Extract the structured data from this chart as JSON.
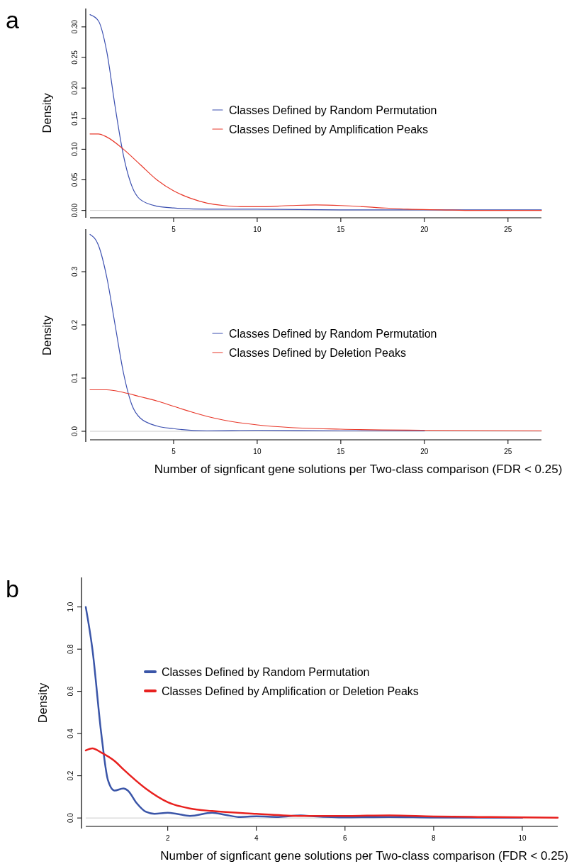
{
  "chart_data": [
    {
      "type": "line",
      "ylabel": "Density",
      "annotations": [
        "a"
      ],
      "xlim": [
        0,
        27
      ],
      "ylim": [
        -0.012,
        0.33
      ],
      "xticks": [
        5,
        10,
        15,
        20,
        25
      ],
      "yticks": [
        {
          "value": 0,
          "label": "0.00"
        },
        {
          "value": 0.05,
          "label": "0.05"
        },
        {
          "value": 0.1,
          "label": "0.10"
        },
        {
          "value": 0.15,
          "label": "0.15"
        },
        {
          "value": 0.2,
          "label": "0.20"
        },
        {
          "value": 0.25,
          "label": "0.25"
        },
        {
          "value": 0.3,
          "label": "0.30"
        }
      ],
      "legend": "right",
      "ref_lines": [
        {
          "axis": "y",
          "value": 0,
          "color": "#cccccc"
        }
      ],
      "series": [
        {
          "name": "Classes Defined by Random Permutation",
          "color": "#3b4fb0",
          "x": [
            0,
            0.5,
            1,
            1.5,
            2,
            2.5,
            3,
            4,
            5,
            7,
            10,
            15,
            20,
            25,
            27
          ],
          "values": [
            0.32,
            0.31,
            0.26,
            0.17,
            0.09,
            0.04,
            0.018,
            0.007,
            0.004,
            0.002,
            0.002,
            0.001,
            0.001,
            0.001,
            0.001
          ]
        },
        {
          "name": "Classes Defined by Amplification Peaks",
          "color": "#e8382a",
          "x": [
            0,
            0.5,
            1,
            2,
            3,
            4,
            5,
            6,
            7,
            8,
            9,
            10,
            12,
            13.5,
            15,
            17,
            19,
            21,
            23,
            25,
            27
          ],
          "values": [
            0.125,
            0.125,
            0.12,
            0.1,
            0.075,
            0.05,
            0.032,
            0.02,
            0.012,
            0.008,
            0.006,
            0.006,
            0.008,
            0.009,
            0.008,
            0.005,
            0.002,
            0.001,
            0,
            0,
            0
          ]
        }
      ]
    },
    {
      "type": "line",
      "ylabel": "Density",
      "xlabel": "Number of signficant gene solutions per Two-class comparison (FDR < 0.25)",
      "xlim": [
        0,
        27
      ],
      "ylim": [
        -0.02,
        0.38
      ],
      "xticks": [
        5,
        10,
        15,
        20,
        25
      ],
      "yticks": [
        {
          "value": 0,
          "label": "0.0"
        },
        {
          "value": 0.1,
          "label": "0.1"
        },
        {
          "value": 0.2,
          "label": "0.2"
        },
        {
          "value": 0.3,
          "label": "0.3"
        }
      ],
      "legend": "right",
      "ref_lines": [
        {
          "axis": "y",
          "value": 0,
          "color": "#cccccc"
        }
      ],
      "series": [
        {
          "name": "Classes Defined by Random Permutation",
          "color": "#3b4fb0",
          "x": [
            0,
            0.5,
            1,
            1.5,
            2,
            2.5,
            3,
            4,
            5,
            7,
            10,
            15,
            20
          ],
          "values": [
            0.37,
            0.35,
            0.29,
            0.2,
            0.11,
            0.05,
            0.025,
            0.01,
            0.005,
            0.001,
            0.002,
            0.001,
            0.001
          ]
        },
        {
          "name": "Classes Defined by Deletion Peaks",
          "color": "#e8382a",
          "x": [
            0,
            1,
            2,
            3,
            4,
            5,
            6,
            7,
            8,
            10,
            12,
            15,
            20,
            27
          ],
          "values": [
            0.078,
            0.078,
            0.073,
            0.065,
            0.057,
            0.047,
            0.037,
            0.028,
            0.021,
            0.012,
            0.007,
            0.004,
            0.002,
            0.001
          ]
        }
      ]
    },
    {
      "type": "line",
      "ylabel": "Density",
      "xlabel": "Number of signficant gene solutions per Two-class comparison (FDR < 0.25)",
      "annotations": [
        "b"
      ],
      "xlim": [
        0.15,
        10.8
      ],
      "ylim": [
        -0.05,
        1.14
      ],
      "xticks": [
        2,
        4,
        6,
        8,
        10
      ],
      "yticks": [
        {
          "value": 0,
          "label": "0.0"
        },
        {
          "value": 0.2,
          "label": "0.2"
        },
        {
          "value": 0.4,
          "label": "0.4"
        },
        {
          "value": 0.6,
          "label": "0.6"
        },
        {
          "value": 0.8,
          "label": "0.8"
        },
        {
          "value": 1,
          "label": "1.0"
        }
      ],
      "legend": "top",
      "ref_lines": [
        {
          "axis": "y",
          "value": 0,
          "color": "#cccccc"
        }
      ],
      "series": [
        {
          "name": "Classes Defined by Random Permutation",
          "color": "#3a55a8",
          "x": [
            0.15,
            0.3,
            0.5,
            0.65,
            0.8,
            1.0,
            1.1,
            1.3,
            1.5,
            1.7,
            2,
            2.2,
            2.5,
            3,
            3.3,
            3.6,
            4,
            4.5,
            5,
            5.3,
            6,
            7,
            8,
            9,
            10
          ],
          "values": [
            1.0,
            0.8,
            0.4,
            0.18,
            0.13,
            0.14,
            0.13,
            0.07,
            0.03,
            0.02,
            0.025,
            0.02,
            0.01,
            0.025,
            0.015,
            0.005,
            0.008,
            0.005,
            0.012,
            0.008,
            0.003,
            0.005,
            0.002,
            null,
            0.001
          ]
        },
        {
          "name": "Classes Defined by Amplification or Deletion Peaks",
          "color": "#e8211f",
          "x": [
            0.15,
            0.3,
            0.5,
            0.8,
            1,
            1.5,
            2,
            2.5,
            3,
            4,
            5,
            6,
            7,
            8,
            9,
            10,
            10.8
          ],
          "values": [
            0.32,
            0.33,
            0.31,
            0.27,
            0.23,
            0.14,
            0.075,
            0.045,
            0.033,
            0.02,
            0.01,
            0.01,
            0.012,
            0.007,
            0.005,
            0.003,
            0.001
          ]
        }
      ]
    }
  ]
}
